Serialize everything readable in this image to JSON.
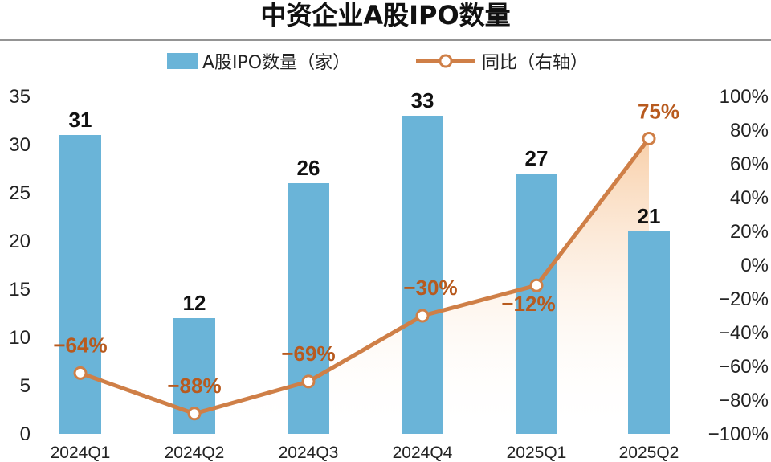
{
  "colors": {
    "bar": "#6ab4d8",
    "line": "#cf7f47",
    "label_pct": "#b85a1e",
    "area_top": "#f7c79a",
    "separator": "#555555"
  },
  "chart_data": {
    "type": "bar+line",
    "title": "中资企业A股IPO数量",
    "categories": [
      "2024Q1",
      "2024Q2",
      "2024Q3",
      "2024Q4",
      "2025Q1",
      "2025Q2"
    ],
    "series": [
      {
        "name": "A股IPO数量（家）",
        "type": "bar",
        "axis": "left",
        "values": [
          31,
          12,
          26,
          33,
          27,
          21
        ],
        "labels": [
          "31",
          "12",
          "26",
          "33",
          "27",
          "21"
        ]
      },
      {
        "name": "同比（右轴）",
        "type": "line",
        "axis": "right",
        "values": [
          -64,
          -88,
          -69,
          -30,
          -12,
          75
        ],
        "labels": [
          "−64%",
          "−88%",
          "−69%",
          "−30%",
          "−12%",
          "75%"
        ]
      }
    ],
    "y_left": {
      "min": 0,
      "max": 35,
      "ticks": [
        "0",
        "5",
        "10",
        "15",
        "20",
        "25",
        "30",
        "35"
      ]
    },
    "y_right": {
      "min": -100,
      "max": 100,
      "ticks": [
        "−100%",
        "−80%",
        "−60%",
        "−40%",
        "−20%",
        "0%",
        "20%",
        "40%",
        "60%",
        "80%",
        "100%"
      ]
    },
    "grid": false,
    "legend": "top-center"
  }
}
